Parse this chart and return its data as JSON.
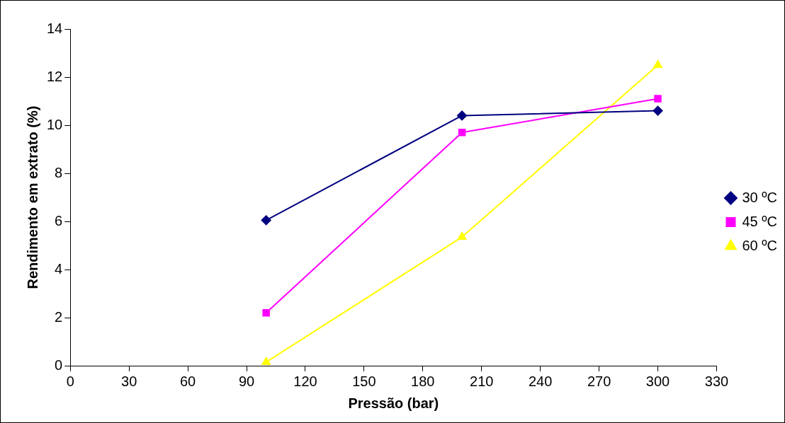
{
  "chart_data": {
    "type": "line",
    "xlabel": "Pressão (bar)",
    "ylabel": "Rendimento em extrato (%)",
    "x": [
      100,
      200,
      300
    ],
    "series": [
      {
        "name": "30 ºC",
        "color": "#000080",
        "marker": "diamond",
        "values": [
          6.05,
          10.4,
          10.6
        ]
      },
      {
        "name": "45 ºC",
        "color": "#ff00ff",
        "marker": "square",
        "values": [
          2.2,
          9.7,
          11.1
        ]
      },
      {
        "name": "60 ºC",
        "color": "#ffff00",
        "marker": "triangle",
        "values": [
          0.15,
          5.35,
          12.5
        ]
      }
    ],
    "xlim": [
      0,
      330
    ],
    "xticks": [
      0,
      30,
      60,
      90,
      120,
      150,
      180,
      210,
      240,
      270,
      300,
      330
    ],
    "ylim": [
      0,
      14
    ],
    "yticks": [
      0,
      2,
      4,
      6,
      8,
      10,
      12,
      14
    ],
    "grid": false,
    "legend": "right",
    "line_style": "solid"
  }
}
